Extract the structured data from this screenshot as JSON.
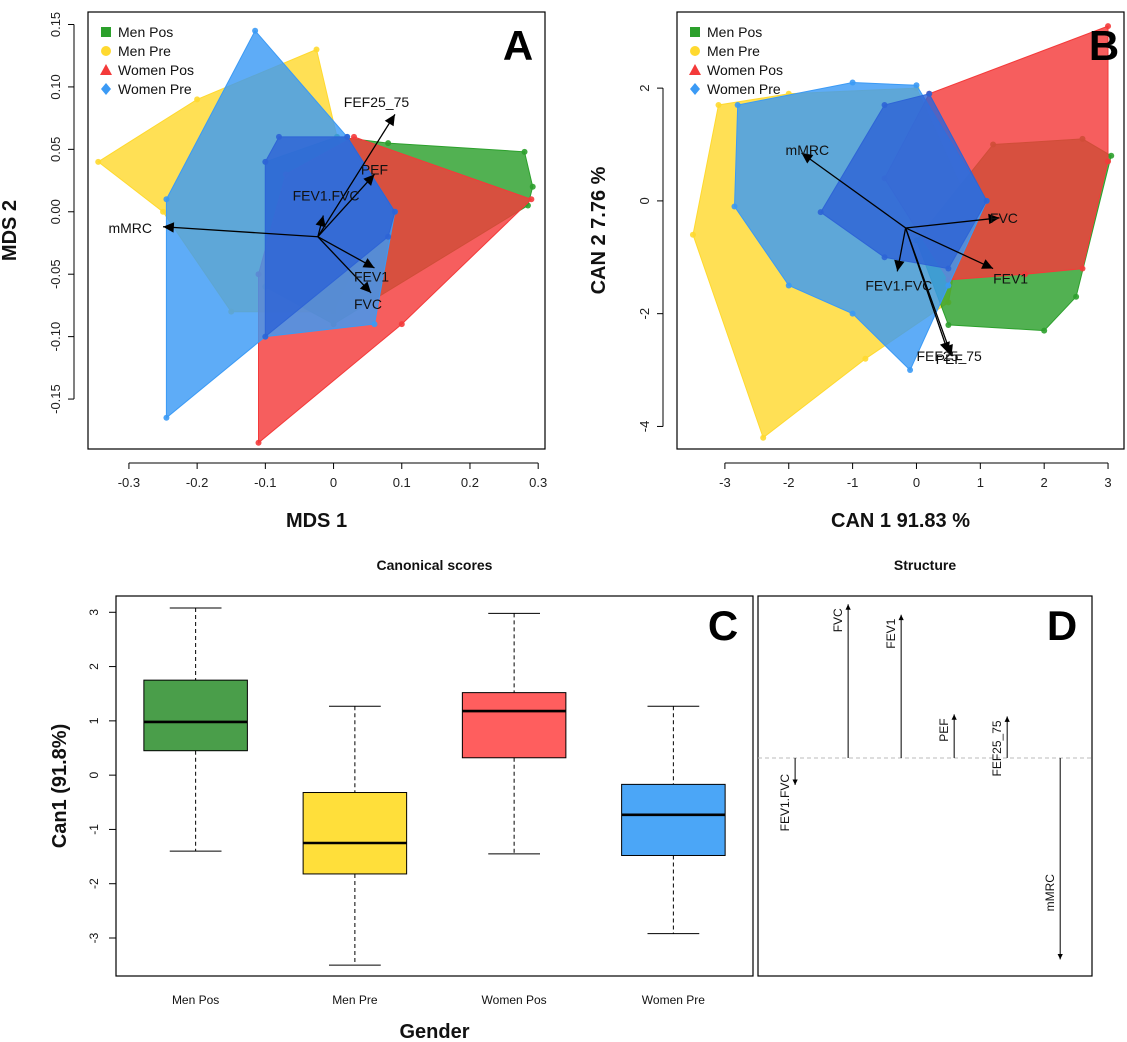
{
  "chart_data": [
    {
      "panel": "A",
      "type": "scatter",
      "xlabel": "MDS 1",
      "ylabel": "MDS 2",
      "xlim": [
        -0.36,
        0.31
      ],
      "ylim": [
        -0.19,
        0.16
      ],
      "xticks": [
        -0.3,
        -0.2,
        -0.1,
        0.0,
        0.1,
        0.2,
        0.3
      ],
      "yticks": [
        -0.15,
        -0.1,
        -0.05,
        0.0,
        0.05,
        0.1,
        0.15
      ],
      "legend": [
        "Men Pos",
        "Men Pre",
        "Women Pos",
        "Women Pre"
      ],
      "legend_position": "top-left",
      "hulls": [
        {
          "name": "Men Pre",
          "color": "#FFD92F",
          "points": [
            [
              -0.345,
              0.04
            ],
            [
              -0.2,
              0.09
            ],
            [
              -0.025,
              0.13
            ],
            [
              0.005,
              0.06
            ],
            [
              0.06,
              -0.01
            ],
            [
              0.0,
              -0.08
            ],
            [
              -0.15,
              -0.08
            ],
            [
              -0.25,
              0.0
            ]
          ]
        },
        {
          "name": "Men Pos",
          "color": "#2CA02C",
          "points": [
            [
              0.005,
              0.06
            ],
            [
              0.08,
              0.055
            ],
            [
              0.28,
              0.048
            ],
            [
              0.292,
              0.02
            ],
            [
              0.285,
              0.005
            ],
            [
              0.0,
              -0.09
            ],
            [
              -0.1,
              -0.06
            ],
            [
              -0.1,
              0.04
            ]
          ]
        },
        {
          "name": "Women Pos",
          "color": "#F43A3A",
          "points": [
            [
              0.03,
              0.06
            ],
            [
              0.29,
              0.01
            ],
            [
              0.1,
              -0.09
            ],
            [
              -0.11,
              -0.185
            ],
            [
              -0.11,
              -0.05
            ],
            [
              -0.07,
              0.03
            ]
          ]
        },
        {
          "name": "Women Pre",
          "color": "#3B9AF5",
          "points": [
            [
              -0.115,
              0.145
            ],
            [
              0.02,
              0.06
            ],
            [
              0.09,
              0.0
            ],
            [
              0.06,
              -0.09
            ],
            [
              -0.1,
              -0.1
            ],
            [
              -0.245,
              -0.165
            ],
            [
              -0.245,
              0.01
            ]
          ]
        },
        {
          "name": "Women Pre",
          "color": "#2E64D6",
          "points": [
            [
              -0.08,
              0.06
            ],
            [
              0.02,
              0.06
            ],
            [
              0.09,
              0.0
            ],
            [
              0.08,
              -0.02
            ],
            [
              -0.1,
              -0.1
            ],
            [
              -0.1,
              0.04
            ]
          ]
        }
      ],
      "arrows": [
        {
          "label": "FEF25_75",
          "x": 0.09,
          "y": 0.078
        },
        {
          "label": "PEF",
          "x": 0.06,
          "y": 0.03
        },
        {
          "label": "FEV1.FVC",
          "x": -0.015,
          "y": -0.003
        },
        {
          "label": "mMRC",
          "x": -0.25,
          "y": -0.012
        },
        {
          "label": "FEV1",
          "x": 0.06,
          "y": -0.045
        },
        {
          "label": "FVC",
          "x": 0.055,
          "y": -0.065
        }
      ],
      "arrow_origin": [
        -0.023,
        -0.02
      ],
      "arrow_labels": [
        {
          "label": "FEF25_75",
          "x": 0.015,
          "y": 0.088
        },
        {
          "label": "PEF",
          "x": 0.04,
          "y": 0.034
        },
        {
          "label": "FEV1.FVC",
          "x": -0.06,
          "y": 0.013
        },
        {
          "label": "mMRC",
          "x": -0.33,
          "y": -0.013
        },
        {
          "label": "FEV1",
          "x": 0.03,
          "y": -0.052
        },
        {
          "label": "FVC",
          "x": 0.03,
          "y": -0.074
        }
      ]
    },
    {
      "panel": "B",
      "type": "scatter",
      "xlabel": "CAN 1 91.83 %",
      "ylabel": "CAN 2 7.76 %",
      "xlim": [
        -3.75,
        3.25
      ],
      "ylim": [
        -4.4,
        3.35
      ],
      "xticks": [
        -3,
        -2,
        -1,
        0,
        1,
        2,
        3
      ],
      "yticks": [
        -4,
        -2,
        0,
        2
      ],
      "legend": [
        "Men Pos",
        "Men Pre",
        "Women Pos",
        "Women Pre"
      ],
      "legend_position": "top-left",
      "hulls": [
        {
          "name": "Men Pre",
          "color": "#FFD92F",
          "points": [
            [
              -3.5,
              -0.6
            ],
            [
              -2.4,
              -4.2
            ],
            [
              -0.8,
              -2.8
            ],
            [
              0.5,
              -1.8
            ],
            [
              0.8,
              0.0
            ],
            [
              0.0,
              2.0
            ],
            [
              -2.0,
              1.9
            ],
            [
              -3.1,
              1.7
            ]
          ]
        },
        {
          "name": "Men Pos",
          "color": "#2CA02C",
          "points": [
            [
              0.0,
              -0.7
            ],
            [
              0.5,
              -2.2
            ],
            [
              2.0,
              -2.3
            ],
            [
              2.5,
              -1.7
            ],
            [
              3.05,
              0.8
            ],
            [
              2.6,
              1.1
            ],
            [
              1.2,
              1.0
            ]
          ]
        },
        {
          "name": "Women Pos",
          "color": "#F43A3A",
          "points": [
            [
              -0.5,
              0.4
            ],
            [
              0.2,
              1.9
            ],
            [
              3.0,
              3.1
            ],
            [
              3.0,
              0.7
            ],
            [
              2.6,
              -1.2
            ],
            [
              1.7,
              -1.3
            ],
            [
              0.5,
              -1.4
            ]
          ]
        },
        {
          "name": "Women Pre",
          "color": "#3B9AF5",
          "points": [
            [
              -2.85,
              -0.1
            ],
            [
              -2.8,
              1.7
            ],
            [
              -1.0,
              2.1
            ],
            [
              0.0,
              2.05
            ],
            [
              1.1,
              0.0
            ],
            [
              0.5,
              -1.5
            ],
            [
              -0.1,
              -3.0
            ],
            [
              -1.0,
              -2.0
            ],
            [
              -2.0,
              -1.5
            ]
          ]
        },
        {
          "name": "Women Pre",
          "color": "#2E64D6",
          "points": [
            [
              -1.5,
              -0.2
            ],
            [
              -0.5,
              1.7
            ],
            [
              0.2,
              1.9
            ],
            [
              1.1,
              0.0
            ],
            [
              0.5,
              -1.2
            ],
            [
              -0.5,
              -1.0
            ]
          ]
        }
      ],
      "arrows": [
        {
          "label": "mMRC",
          "x": -1.8,
          "y": 0.85
        },
        {
          "label": "FVC",
          "x": 1.3,
          "y": -0.3
        },
        {
          "label": "FEV1",
          "x": 1.2,
          "y": -1.2
        },
        {
          "label": "FEV1.FVC",
          "x": -0.3,
          "y": -1.25
        },
        {
          "label": "FEF25_75",
          "x": 0.55,
          "y": -2.75
        },
        {
          "label": "PEF",
          "x": 0.5,
          "y": -2.7
        }
      ],
      "arrow_origin": [
        -0.17,
        -0.48
      ],
      "arrow_labels": [
        {
          "label": "mMRC",
          "x": -2.05,
          "y": 0.9
        },
        {
          "label": "FVC",
          "x": 1.15,
          "y": -0.3
        },
        {
          "label": "FEV1",
          "x": 1.2,
          "y": -1.38
        },
        {
          "label": "FEV1.FVC",
          "x": -0.8,
          "y": -1.5
        },
        {
          "label": "FEF25_75",
          "x": 0.0,
          "y": -2.75
        },
        {
          "label": "PEF",
          "x": 0.3,
          "y": -2.8
        }
      ]
    },
    {
      "panel": "C",
      "type": "box",
      "title": "Canonical scores",
      "xlabel": "Gender",
      "ylabel": "Can1 (91.8%)",
      "ylim": [
        -3.7,
        3.3
      ],
      "yticks": [
        -3,
        -2,
        -1,
        0,
        1,
        2,
        3
      ],
      "categories": [
        "Men Pos",
        "Men Pre",
        "Women Pos",
        "Women Pre"
      ],
      "boxes": [
        {
          "name": "Men Pos",
          "color": "#4A9E4A",
          "min": -1.4,
          "q1": 0.45,
          "median": 0.98,
          "q3": 1.75,
          "max": 3.08
        },
        {
          "name": "Men Pre",
          "color": "#FFDF3A",
          "min": -3.5,
          "q1": -1.82,
          "median": -1.25,
          "q3": -0.32,
          "max": 1.27
        },
        {
          "name": "Women Pos",
          "color": "#FF5E5E",
          "min": -1.45,
          "q1": 0.32,
          "median": 1.18,
          "q3": 1.52,
          "max": 2.98
        },
        {
          "name": "Women Pre",
          "color": "#4BA6F7",
          "min": -2.92,
          "q1": -1.48,
          "median": -0.73,
          "q3": -0.17,
          "max": 1.27
        }
      ]
    },
    {
      "panel": "D",
      "type": "bar",
      "title": "Structure",
      "ylim": [
        -1.05,
        0.78
      ],
      "baseline": 0,
      "categories": [
        "FEV1.FVC",
        "FVC",
        "FEV1",
        "PEF",
        "FEF25_75",
        "mMRC"
      ],
      "values": [
        -0.13,
        0.74,
        0.69,
        0.21,
        0.2,
        -0.97
      ]
    }
  ],
  "panel_letters": [
    "A",
    "B",
    "C",
    "D"
  ],
  "colors": {
    "men_pos": "#2CA02C",
    "men_pre": "#FFD92F",
    "women_pos": "#F43A3A",
    "women_pre": "#3B9AF5"
  }
}
